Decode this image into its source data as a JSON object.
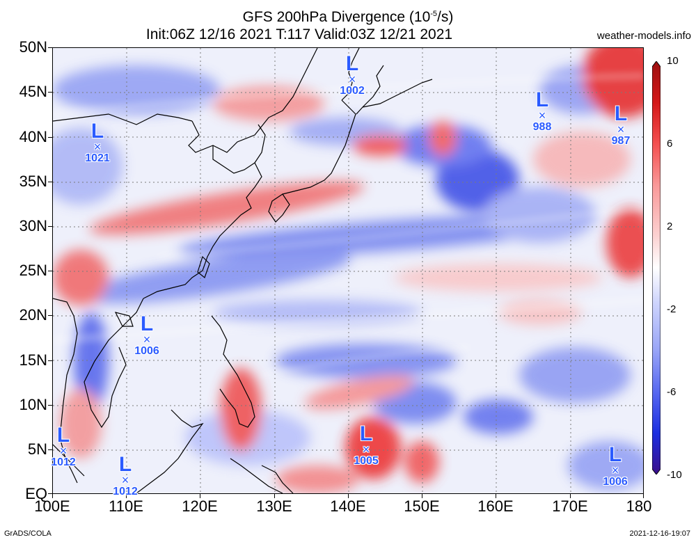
{
  "title": {
    "line1_prefix": "GFS 200hPa Divergence (10",
    "line1_exp": "-5",
    "line1_suffix": "/s)",
    "line2": "Init:06Z 12/16 2021 T:117 Valid:03Z 12/21 2021"
  },
  "site": "weather-models.info",
  "lat_labels": [
    "50N",
    "45N",
    "40N",
    "35N",
    "30N",
    "25N",
    "20N",
    "15N",
    "10N",
    "5N",
    "EQ"
  ],
  "lon_labels": [
    "100E",
    "110E",
    "120E",
    "130E",
    "140E",
    "150E",
    "160E",
    "170E",
    "180"
  ],
  "colorbar": {
    "labels": [
      "10",
      "6",
      "2",
      "-2",
      "-6",
      "-10"
    ],
    "colors": [
      "#9c1010",
      "#d41818",
      "#f45050",
      "#f99898",
      "#fcd0d0",
      "#ffffff",
      "#d0d6fc",
      "#98a4f7",
      "#5868f0",
      "#1c2ee0",
      "#3a0e8a"
    ]
  },
  "lows": [
    {
      "pressure": "1002",
      "symbol": "L",
      "mark": "×"
    },
    {
      "pressure": "1021",
      "symbol": "L",
      "mark": "×"
    },
    {
      "pressure": "988",
      "symbol": "L",
      "mark": "×"
    },
    {
      "pressure": "987",
      "symbol": "L",
      "mark": "×"
    },
    {
      "pressure": "1006",
      "symbol": "L",
      "mark": "×"
    },
    {
      "pressure": "1005",
      "symbol": "L",
      "mark": "×"
    },
    {
      "pressure": "1012",
      "symbol": "L",
      "mark": "×"
    },
    {
      "pressure": "1012",
      "symbol": "L",
      "mark": "×"
    },
    {
      "pressure": "1006",
      "symbol": "L",
      "mark": "×"
    }
  ],
  "footer": {
    "left": "GrADS/COLA",
    "right": "2021-12-16-19:07"
  }
}
